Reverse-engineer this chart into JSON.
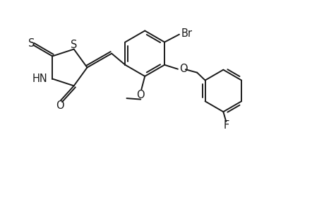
{
  "background_color": "#ffffff",
  "line_color": "#1a1a1a",
  "line_width": 1.4,
  "font_size": 10.5,
  "fig_width": 4.6,
  "fig_height": 3.0,
  "dpi": 100,
  "xlim": [
    0,
    9.2
  ],
  "ylim": [
    0,
    6.0
  ]
}
